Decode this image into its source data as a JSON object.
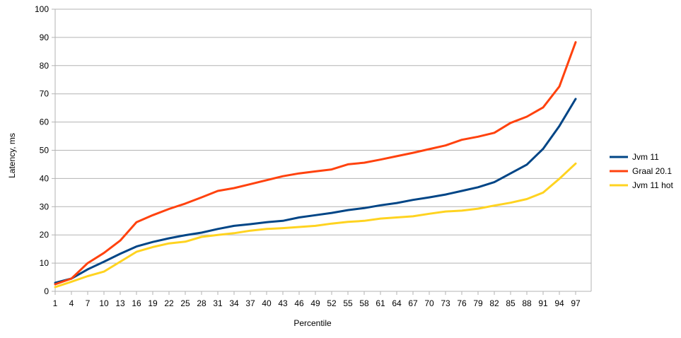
{
  "chart_data": {
    "type": "line",
    "title": "",
    "xlabel": "Percentile",
    "ylabel": "Latency, ms",
    "ylim": [
      0,
      100
    ],
    "yticks": [
      0,
      10,
      20,
      30,
      40,
      50,
      60,
      70,
      80,
      90,
      100
    ],
    "grid": "horizontal",
    "legend_position": "right",
    "x": [
      1,
      4,
      7,
      10,
      13,
      16,
      19,
      22,
      25,
      28,
      31,
      34,
      37,
      40,
      43,
      46,
      49,
      52,
      55,
      58,
      61,
      64,
      67,
      70,
      73,
      76,
      79,
      82,
      85,
      88,
      91,
      94,
      97
    ],
    "series": [
      {
        "name": "Jvm 11",
        "color": "#004586",
        "values": [
          3,
          4.5,
          7.8,
          10.5,
          13.3,
          15.9,
          17.5,
          18.8,
          19.9,
          20.8,
          22.1,
          23.2,
          23.8,
          24.5,
          25.0,
          26.2,
          27.0,
          27.8,
          28.8,
          29.5,
          30.5,
          31.3,
          32.4,
          33.3,
          34.3,
          35.6,
          36.9,
          38.7,
          41.8,
          44.9,
          50.5,
          58.6,
          68.2
        ]
      },
      {
        "name": "Graal 20.1",
        "color": "#ff420e",
        "values": [
          2.5,
          4.5,
          10.0,
          13.6,
          18.0,
          24.5,
          27.0,
          29.2,
          31.1,
          33.3,
          35.6,
          36.6,
          38.0,
          39.4,
          40.8,
          41.8,
          42.5,
          43.2,
          45.0,
          45.6,
          46.7,
          47.9,
          49.1,
          50.4,
          51.7,
          53.7,
          54.8,
          56.2,
          59.7,
          61.9,
          65.2,
          72.6,
          88.3
        ]
      },
      {
        "name": "Jvm 11 hot",
        "color": "#ffd320",
        "values": [
          1.5,
          3.4,
          5.4,
          7.0,
          10.5,
          14.0,
          15.7,
          17.0,
          17.6,
          19.3,
          20.0,
          20.6,
          21.5,
          22.1,
          22.4,
          22.8,
          23.2,
          24.0,
          24.6,
          25.0,
          25.8,
          26.2,
          26.6,
          27.5,
          28.3,
          28.6,
          29.3,
          30.4,
          31.4,
          32.7,
          35.0,
          39.9,
          45.3
        ]
      }
    ]
  }
}
